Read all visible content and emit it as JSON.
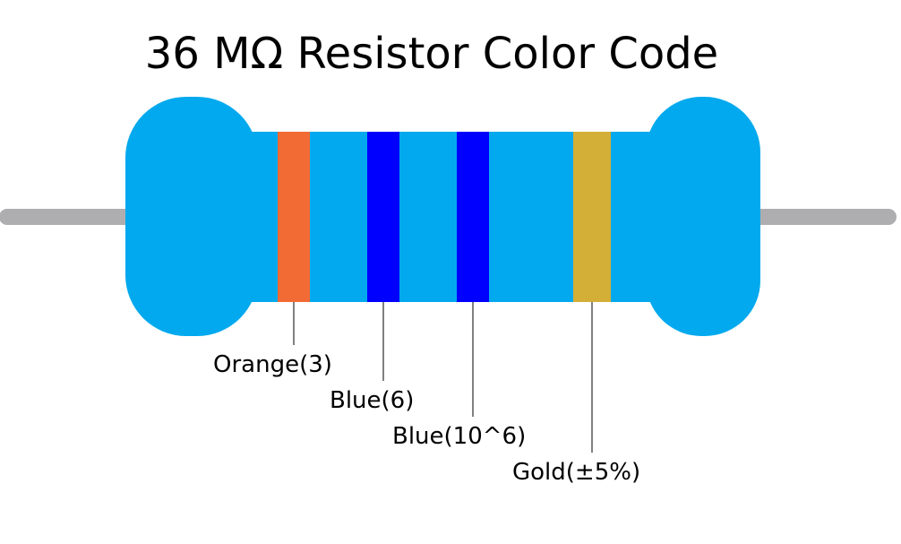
{
  "title": "36 MΩ Resistor Color Code",
  "colors": {
    "body": "#03a9ee",
    "lead": "#aeaeb0",
    "pointer": "#000000"
  },
  "bands": [
    {
      "name": "orange",
      "color": "#f26b34",
      "label": "Orange(3)"
    },
    {
      "name": "blue-1",
      "color": "#0000ff",
      "label": "Blue(6)"
    },
    {
      "name": "blue-2",
      "color": "#0000ff",
      "label": "Blue(10^6)"
    },
    {
      "name": "gold",
      "color": "#d4af37",
      "label": "Gold(±5%)"
    }
  ]
}
